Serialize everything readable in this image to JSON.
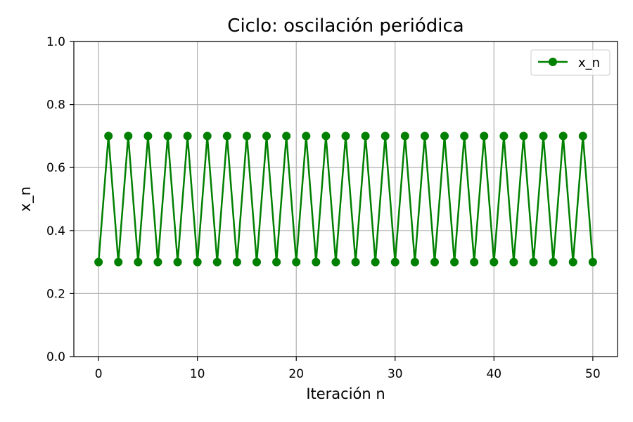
{
  "chart_data": {
    "type": "line",
    "title": "Ciclo: oscilación periódica",
    "xlabel": "Iteración n",
    "ylabel": "x_n",
    "xlim": [
      -2.5,
      52.5
    ],
    "ylim": [
      0.0,
      1.0
    ],
    "xticks": [
      "0",
      "10",
      "20",
      "30",
      "40",
      "50"
    ],
    "yticks": [
      "0.0",
      "0.2",
      "0.4",
      "0.6",
      "0.8",
      "1.0"
    ],
    "grid": true,
    "legend_position": "top-right",
    "series": [
      {
        "name": "x_n",
        "color": "#008000",
        "marker": "circle",
        "x": [
          0,
          1,
          2,
          3,
          4,
          5,
          6,
          7,
          8,
          9,
          10,
          11,
          12,
          13,
          14,
          15,
          16,
          17,
          18,
          19,
          20,
          21,
          22,
          23,
          24,
          25,
          26,
          27,
          28,
          29,
          30,
          31,
          32,
          33,
          34,
          35,
          36,
          37,
          38,
          39,
          40,
          41,
          42,
          43,
          44,
          45,
          46,
          47,
          48,
          49,
          50
        ],
        "y": [
          0.3,
          0.7,
          0.3,
          0.7,
          0.3,
          0.7,
          0.3,
          0.7,
          0.3,
          0.7,
          0.3,
          0.7,
          0.3,
          0.7,
          0.3,
          0.7,
          0.3,
          0.7,
          0.3,
          0.7,
          0.3,
          0.7,
          0.3,
          0.7,
          0.3,
          0.7,
          0.3,
          0.7,
          0.3,
          0.7,
          0.3,
          0.7,
          0.3,
          0.7,
          0.3,
          0.7,
          0.3,
          0.7,
          0.3,
          0.7,
          0.3,
          0.7,
          0.3,
          0.7,
          0.3,
          0.7,
          0.3,
          0.7,
          0.3,
          0.7,
          0.3
        ]
      }
    ]
  }
}
